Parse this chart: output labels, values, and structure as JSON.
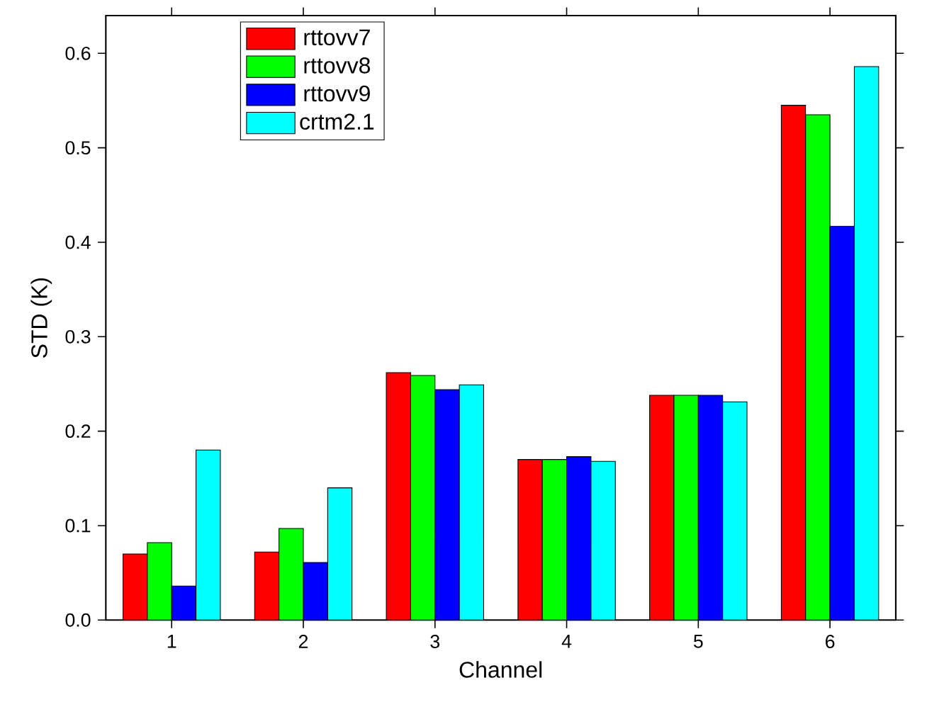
{
  "chart_data": {
    "type": "bar",
    "xlabel": "Channel",
    "ylabel": "STD (K)",
    "categories": [
      "1",
      "2",
      "3",
      "4",
      "5",
      "6"
    ],
    "series": [
      {
        "name": "rttovv7",
        "color": "#ff0000",
        "values": [
          0.07,
          0.072,
          0.262,
          0.17,
          0.238,
          0.545
        ]
      },
      {
        "name": "rttovv8",
        "color": "#00ff00",
        "values": [
          0.082,
          0.097,
          0.259,
          0.17,
          0.238,
          0.535
        ]
      },
      {
        "name": "rttovv9",
        "color": "#0000ff",
        "values": [
          0.036,
          0.061,
          0.244,
          0.173,
          0.238,
          0.417
        ]
      },
      {
        "name": "crtm2.1",
        "color": "#00ffff",
        "values": [
          0.18,
          0.14,
          0.249,
          0.168,
          0.231,
          0.586
        ]
      }
    ],
    "ylim": [
      0,
      0.64
    ],
    "yticks": [
      {
        "value": 0,
        "label": "0.0"
      },
      0.1,
      0.2,
      0.3,
      0.4,
      0.5,
      0.6
    ],
    "legend": "top left",
    "grid": false
  }
}
